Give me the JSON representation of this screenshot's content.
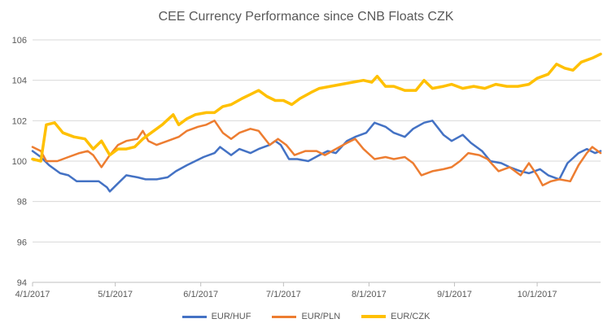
{
  "colors": {
    "EUR/HUF": "#4472c4",
    "EUR/PLN": "#ed7d31",
    "EUR/CZK": "#ffc000",
    "grid": "#d9d9d9",
    "axis": "#bfbfbf",
    "text": "#595959"
  },
  "chart_data": {
    "type": "line",
    "title": "CEE Currency Performance since CNB Floats CZK",
    "xlabel": "",
    "ylabel": "",
    "xaxis_type": "date",
    "xlim": [
      "2017-04-01",
      "2017-10-24"
    ],
    "xticks": [
      "2017-04-01",
      "2017-05-01",
      "2017-06-01",
      "2017-07-01",
      "2017-08-01",
      "2017-09-01",
      "2017-10-01"
    ],
    "xtick_labels": [
      "4/1/2017",
      "5/1/2017",
      "6/1/2017",
      "7/1/2017",
      "8/1/2017",
      "9/1/2017",
      "10/1/2017"
    ],
    "ylim": [
      94,
      106
    ],
    "yticks": [
      94,
      96,
      98,
      100,
      102,
      104,
      106
    ],
    "ytick_labels": [
      "94",
      "96",
      "98",
      "100",
      "102",
      "104",
      "106"
    ],
    "grid": true,
    "legend": "bottom",
    "series": [
      {
        "name": "EUR/HUF",
        "points": [
          [
            "2017-04-01",
            100.5
          ],
          [
            "2017-04-04",
            100.2
          ],
          [
            "2017-04-07",
            99.8
          ],
          [
            "2017-04-11",
            99.4
          ],
          [
            "2017-04-14",
            99.3
          ],
          [
            "2017-04-17",
            99.0
          ],
          [
            "2017-04-21",
            99.0
          ],
          [
            "2017-04-25",
            99.0
          ],
          [
            "2017-04-28",
            98.7
          ],
          [
            "2017-04-29",
            98.5
          ],
          [
            "2017-05-02",
            98.9
          ],
          [
            "2017-05-05",
            99.3
          ],
          [
            "2017-05-09",
            99.2
          ],
          [
            "2017-05-12",
            99.1
          ],
          [
            "2017-05-16",
            99.1
          ],
          [
            "2017-05-20",
            99.2
          ],
          [
            "2017-05-23",
            99.5
          ],
          [
            "2017-05-27",
            99.8
          ],
          [
            "2017-05-30",
            100.0
          ],
          [
            "2017-06-02",
            100.2
          ],
          [
            "2017-06-06",
            100.4
          ],
          [
            "2017-06-08",
            100.7
          ],
          [
            "2017-06-12",
            100.3
          ],
          [
            "2017-06-15",
            100.6
          ],
          [
            "2017-06-19",
            100.4
          ],
          [
            "2017-06-22",
            100.6
          ],
          [
            "2017-06-26",
            100.8
          ],
          [
            "2017-06-28",
            101.0
          ],
          [
            "2017-06-30",
            100.8
          ],
          [
            "2017-07-03",
            100.1
          ],
          [
            "2017-07-06",
            100.1
          ],
          [
            "2017-07-10",
            100.0
          ],
          [
            "2017-07-14",
            100.3
          ],
          [
            "2017-07-17",
            100.5
          ],
          [
            "2017-07-20",
            100.4
          ],
          [
            "2017-07-24",
            101.0
          ],
          [
            "2017-07-27",
            101.2
          ],
          [
            "2017-07-31",
            101.4
          ],
          [
            "2017-08-03",
            101.9
          ],
          [
            "2017-08-07",
            101.7
          ],
          [
            "2017-08-10",
            101.4
          ],
          [
            "2017-08-14",
            101.2
          ],
          [
            "2017-08-17",
            101.6
          ],
          [
            "2017-08-21",
            101.9
          ],
          [
            "2017-08-24",
            102.0
          ],
          [
            "2017-08-28",
            101.3
          ],
          [
            "2017-08-31",
            101.0
          ],
          [
            "2017-09-04",
            101.3
          ],
          [
            "2017-09-07",
            100.9
          ],
          [
            "2017-09-11",
            100.5
          ],
          [
            "2017-09-14",
            100.0
          ],
          [
            "2017-09-18",
            99.9
          ],
          [
            "2017-09-21",
            99.7
          ],
          [
            "2017-09-25",
            99.5
          ],
          [
            "2017-09-28",
            99.4
          ],
          [
            "2017-10-02",
            99.6
          ],
          [
            "2017-10-05",
            99.3
          ],
          [
            "2017-10-09",
            99.1
          ],
          [
            "2017-10-12",
            99.9
          ],
          [
            "2017-10-16",
            100.4
          ],
          [
            "2017-10-19",
            100.6
          ],
          [
            "2017-10-22",
            100.4
          ],
          [
            "2017-10-24",
            100.5
          ]
        ]
      },
      {
        "name": "EUR/PLN",
        "points": [
          [
            "2017-04-01",
            100.7
          ],
          [
            "2017-04-04",
            100.5
          ],
          [
            "2017-04-06",
            100.0
          ],
          [
            "2017-04-10",
            100.0
          ],
          [
            "2017-04-14",
            100.2
          ],
          [
            "2017-04-18",
            100.4
          ],
          [
            "2017-04-21",
            100.5
          ],
          [
            "2017-04-23",
            100.3
          ],
          [
            "2017-04-26",
            99.7
          ],
          [
            "2017-04-29",
            100.3
          ],
          [
            "2017-05-02",
            100.8
          ],
          [
            "2017-05-05",
            101.0
          ],
          [
            "2017-05-09",
            101.1
          ],
          [
            "2017-05-11",
            101.5
          ],
          [
            "2017-05-13",
            101.0
          ],
          [
            "2017-05-16",
            100.8
          ],
          [
            "2017-05-20",
            101.0
          ],
          [
            "2017-05-24",
            101.2
          ],
          [
            "2017-05-27",
            101.5
          ],
          [
            "2017-05-31",
            101.7
          ],
          [
            "2017-06-03",
            101.8
          ],
          [
            "2017-06-06",
            102.0
          ],
          [
            "2017-06-09",
            101.4
          ],
          [
            "2017-06-12",
            101.1
          ],
          [
            "2017-06-15",
            101.4
          ],
          [
            "2017-06-19",
            101.6
          ],
          [
            "2017-06-22",
            101.5
          ],
          [
            "2017-06-26",
            100.8
          ],
          [
            "2017-06-29",
            101.1
          ],
          [
            "2017-07-02",
            100.8
          ],
          [
            "2017-07-05",
            100.3
          ],
          [
            "2017-07-09",
            100.5
          ],
          [
            "2017-07-13",
            100.5
          ],
          [
            "2017-07-16",
            100.3
          ],
          [
            "2017-07-20",
            100.6
          ],
          [
            "2017-07-24",
            100.9
          ],
          [
            "2017-07-27",
            101.1
          ],
          [
            "2017-07-30",
            100.6
          ],
          [
            "2017-08-03",
            100.1
          ],
          [
            "2017-08-07",
            100.2
          ],
          [
            "2017-08-10",
            100.1
          ],
          [
            "2017-08-14",
            100.2
          ],
          [
            "2017-08-17",
            99.9
          ],
          [
            "2017-08-20",
            99.3
          ],
          [
            "2017-08-24",
            99.5
          ],
          [
            "2017-08-28",
            99.6
          ],
          [
            "2017-08-31",
            99.7
          ],
          [
            "2017-09-03",
            100.0
          ],
          [
            "2017-09-06",
            100.4
          ],
          [
            "2017-09-10",
            100.3
          ],
          [
            "2017-09-13",
            100.1
          ],
          [
            "2017-09-17",
            99.5
          ],
          [
            "2017-09-21",
            99.7
          ],
          [
            "2017-09-25",
            99.3
          ],
          [
            "2017-09-28",
            99.9
          ],
          [
            "2017-10-01",
            99.3
          ],
          [
            "2017-10-03",
            98.8
          ],
          [
            "2017-10-06",
            99.0
          ],
          [
            "2017-10-09",
            99.1
          ],
          [
            "2017-10-13",
            99.0
          ],
          [
            "2017-10-16",
            99.8
          ],
          [
            "2017-10-19",
            100.4
          ],
          [
            "2017-10-21",
            100.7
          ],
          [
            "2017-10-24",
            100.4
          ]
        ]
      },
      {
        "name": "EUR/CZK",
        "points": [
          [
            "2017-04-01",
            100.1
          ],
          [
            "2017-04-04",
            100.0
          ],
          [
            "2017-04-06",
            101.8
          ],
          [
            "2017-04-09",
            101.9
          ],
          [
            "2017-04-12",
            101.4
          ],
          [
            "2017-04-16",
            101.2
          ],
          [
            "2017-04-20",
            101.1
          ],
          [
            "2017-04-23",
            100.6
          ],
          [
            "2017-04-26",
            101.0
          ],
          [
            "2017-04-29",
            100.3
          ],
          [
            "2017-05-02",
            100.6
          ],
          [
            "2017-05-05",
            100.6
          ],
          [
            "2017-05-08",
            100.7
          ],
          [
            "2017-05-11",
            101.1
          ],
          [
            "2017-05-14",
            101.4
          ],
          [
            "2017-05-18",
            101.8
          ],
          [
            "2017-05-22",
            102.3
          ],
          [
            "2017-05-24",
            101.8
          ],
          [
            "2017-05-27",
            102.1
          ],
          [
            "2017-05-30",
            102.3
          ],
          [
            "2017-06-03",
            102.4
          ],
          [
            "2017-06-06",
            102.4
          ],
          [
            "2017-06-09",
            102.7
          ],
          [
            "2017-06-12",
            102.8
          ],
          [
            "2017-06-16",
            103.1
          ],
          [
            "2017-06-19",
            103.3
          ],
          [
            "2017-06-22",
            103.5
          ],
          [
            "2017-06-25",
            103.2
          ],
          [
            "2017-06-28",
            103.0
          ],
          [
            "2017-07-01",
            103.0
          ],
          [
            "2017-07-04",
            102.8
          ],
          [
            "2017-07-07",
            103.1
          ],
          [
            "2017-07-11",
            103.4
          ],
          [
            "2017-07-14",
            103.6
          ],
          [
            "2017-07-18",
            103.7
          ],
          [
            "2017-07-22",
            103.8
          ],
          [
            "2017-07-26",
            103.9
          ],
          [
            "2017-07-30",
            104.0
          ],
          [
            "2017-08-02",
            103.9
          ],
          [
            "2017-08-04",
            104.2
          ],
          [
            "2017-08-07",
            103.7
          ],
          [
            "2017-08-10",
            103.7
          ],
          [
            "2017-08-14",
            103.5
          ],
          [
            "2017-08-18",
            103.5
          ],
          [
            "2017-08-21",
            104.0
          ],
          [
            "2017-08-24",
            103.6
          ],
          [
            "2017-08-28",
            103.7
          ],
          [
            "2017-08-31",
            103.8
          ],
          [
            "2017-09-04",
            103.6
          ],
          [
            "2017-09-08",
            103.7
          ],
          [
            "2017-09-12",
            103.6
          ],
          [
            "2017-09-16",
            103.8
          ],
          [
            "2017-09-20",
            103.7
          ],
          [
            "2017-09-24",
            103.7
          ],
          [
            "2017-09-28",
            103.8
          ],
          [
            "2017-10-01",
            104.1
          ],
          [
            "2017-10-05",
            104.3
          ],
          [
            "2017-10-08",
            104.8
          ],
          [
            "2017-10-11",
            104.6
          ],
          [
            "2017-10-14",
            104.5
          ],
          [
            "2017-10-17",
            104.9
          ],
          [
            "2017-10-21",
            105.1
          ],
          [
            "2017-10-24",
            105.3
          ]
        ]
      }
    ]
  }
}
